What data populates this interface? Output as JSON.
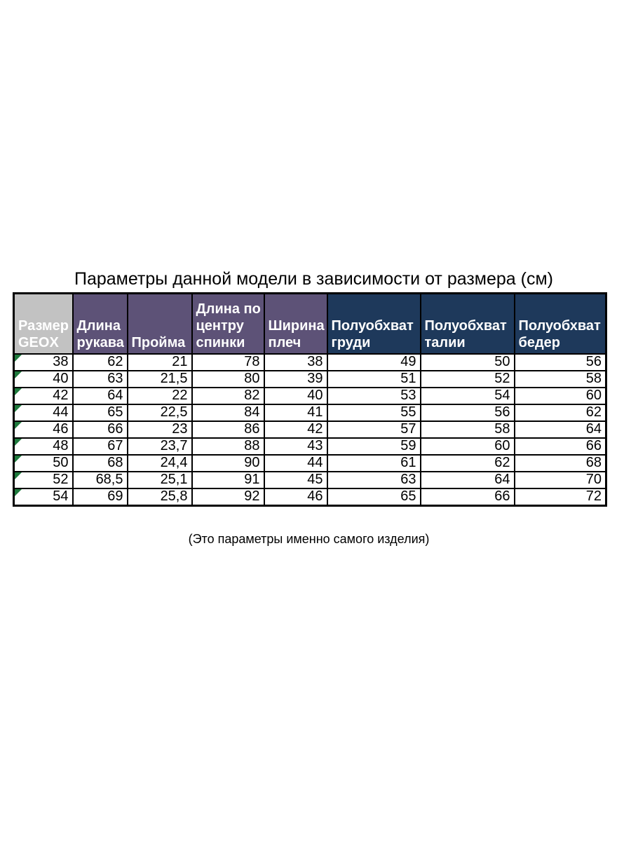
{
  "page": {
    "title": "Параметры данной модели в зависимости от размера (см)",
    "footnote": "(Это параметры именно самого изделия)"
  },
  "size_chart": {
    "columns": [
      {
        "label": "Размер GEOX",
        "name": "size-geox",
        "group": "size"
      },
      {
        "label": "Длина рукава",
        "name": "sleeve-length",
        "group": "measure"
      },
      {
        "label": "Пройма",
        "name": "armhole",
        "group": "measure"
      },
      {
        "label": "Длина по центру спинки",
        "name": "center-back-length",
        "group": "measure"
      },
      {
        "label": "Ширина плеч",
        "name": "shoulder-width",
        "group": "measure"
      },
      {
        "label": "Полуобхват груди",
        "name": "half-chest",
        "group": "half"
      },
      {
        "label": "Полуобхват талии",
        "name": "half-waist",
        "group": "half"
      },
      {
        "label": "Полуобхват бедер",
        "name": "half-hips",
        "group": "half"
      }
    ],
    "rows": [
      [
        "38",
        "62",
        "21",
        "78",
        "38",
        "49",
        "50",
        "56"
      ],
      [
        "40",
        "63",
        "21,5",
        "80",
        "39",
        "51",
        "52",
        "58"
      ],
      [
        "42",
        "64",
        "22",
        "82",
        "40",
        "53",
        "54",
        "60"
      ],
      [
        "44",
        "65",
        "22,5",
        "84",
        "41",
        "55",
        "56",
        "62"
      ],
      [
        "46",
        "66",
        "23",
        "86",
        "42",
        "57",
        "58",
        "64"
      ],
      [
        "48",
        "67",
        "23,7",
        "88",
        "43",
        "59",
        "60",
        "66"
      ],
      [
        "50",
        "68",
        "24,4",
        "90",
        "44",
        "61",
        "62",
        "68"
      ],
      [
        "52",
        "68,5",
        "25,1",
        "91",
        "45",
        "63",
        "64",
        "70"
      ],
      [
        "54",
        "69",
        "25,8",
        "92",
        "46",
        "65",
        "66",
        "72"
      ]
    ]
  },
  "colors": {
    "header_size_bg": "#c2c2c2",
    "header_measure_bg": "#5d5277",
    "header_half_bg": "#1e395b",
    "header_text": "#ffffff",
    "error_triangle_green": "#1f7a3d",
    "border_black": "#000000"
  }
}
